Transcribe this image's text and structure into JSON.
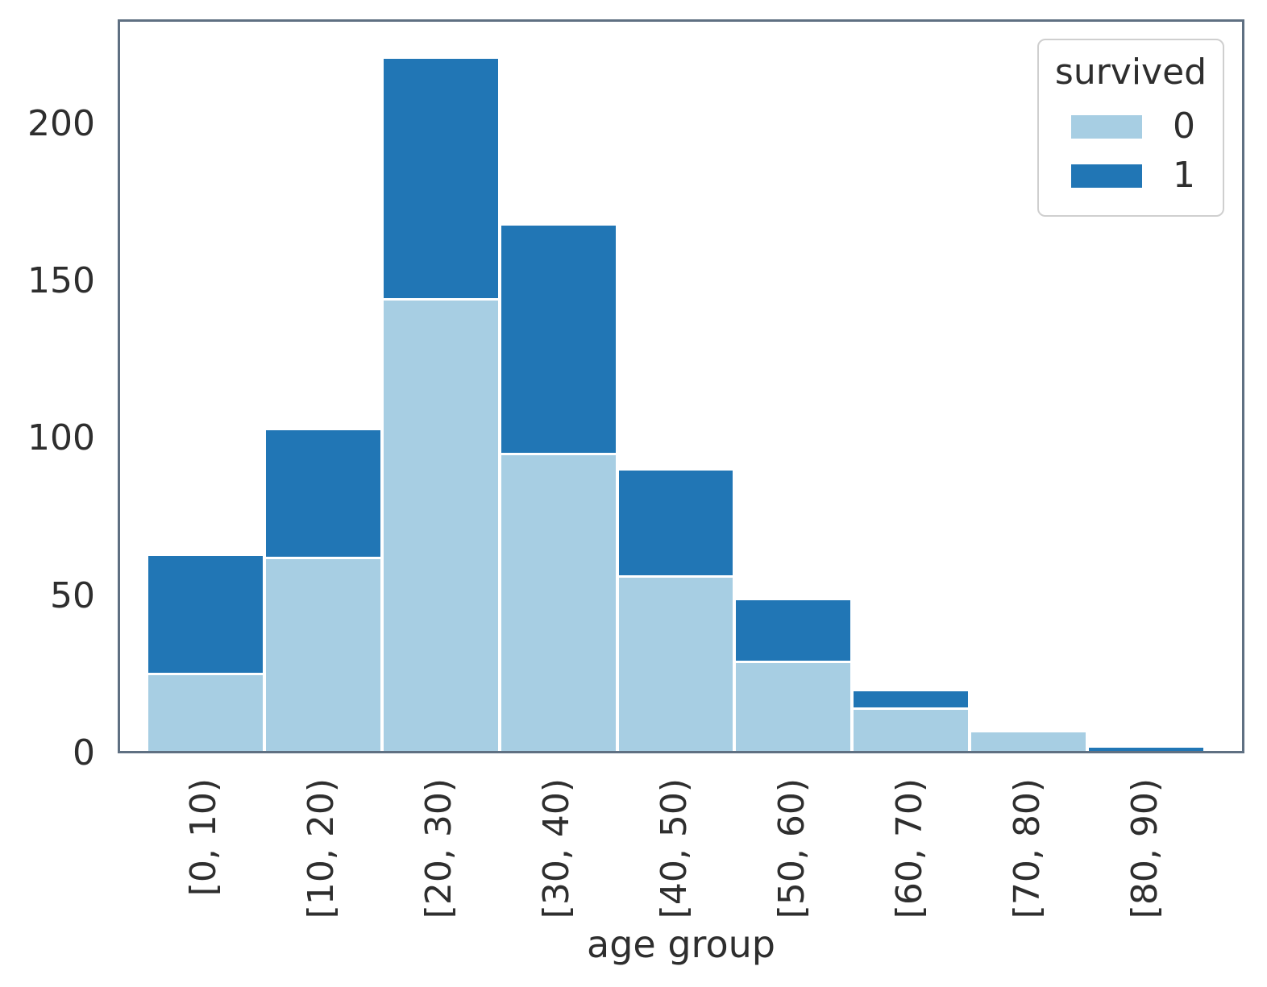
{
  "chart_data": {
    "type": "bar",
    "stacked": true,
    "title": "",
    "xlabel": "age group",
    "ylabel": "",
    "categories": [
      "[0, 10)",
      "[10, 20)",
      "[20, 30)",
      "[30, 40)",
      "[40, 50)",
      "[50, 60)",
      "[60, 70)",
      "[70, 80)",
      "[80, 90)"
    ],
    "series": [
      {
        "name": "0",
        "color": "#a7cee3",
        "values": [
          24,
          61,
          143,
          94,
          55,
          28,
          13,
          6,
          0
        ]
      },
      {
        "name": "1",
        "color": "#2176b5",
        "values": [
          38,
          41,
          77,
          73,
          34,
          20,
          6,
          0,
          1
        ]
      }
    ],
    "yticks": [
      0,
      50,
      100,
      150,
      200
    ],
    "ylim": [
      0,
      233
    ],
    "grid": false,
    "legend": {
      "title": "survived",
      "entries": [
        "0",
        "1"
      ],
      "position": "upper-right"
    }
  },
  "colors": {
    "survived_0": "#a7cee3",
    "survived_1": "#2176b5",
    "spine": "#5f7082",
    "legend_border": "#cfcfcf",
    "text": "#2e2e2e"
  }
}
